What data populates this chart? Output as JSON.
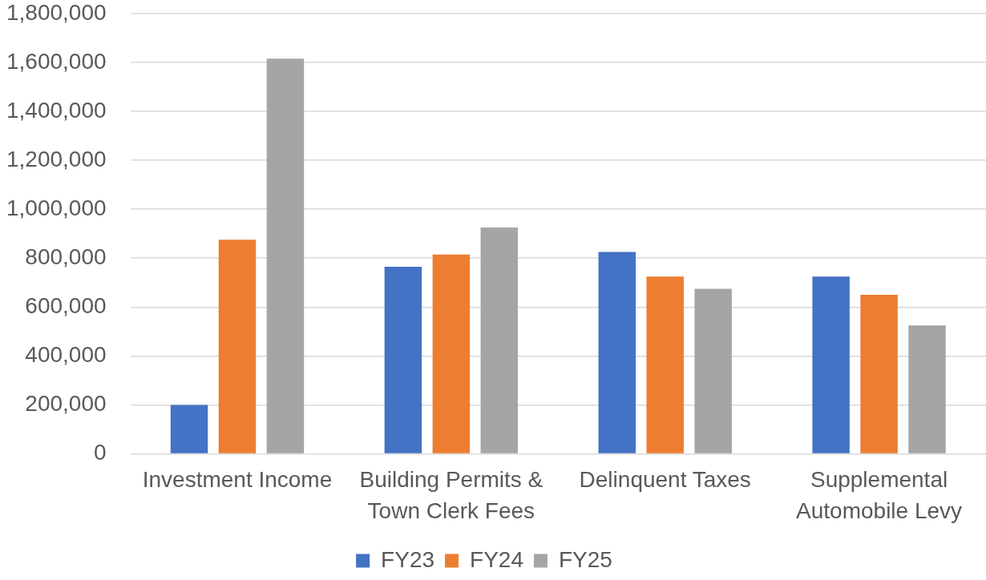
{
  "chart_data": {
    "type": "bar",
    "categories": [
      "Investment Income",
      "Building Permits & Town Clerk Fees",
      "Delinquent Taxes",
      "Supplemental Automobile Levy"
    ],
    "series": [
      {
        "name": "FY23",
        "color": "#4472c4",
        "values": [
          200000,
          765000,
          825000,
          725000
        ]
      },
      {
        "name": "FY24",
        "color": "#ed7d31",
        "values": [
          875000,
          815000,
          725000,
          650000
        ]
      },
      {
        "name": "FY25",
        "color": "#a5a5a5",
        "values": [
          1615000,
          925000,
          675000,
          525000
        ]
      }
    ],
    "ylim": [
      0,
      1800000
    ],
    "yticks": [
      {
        "value": 0,
        "label": "0"
      },
      {
        "value": 200000,
        "label": "200,000"
      },
      {
        "value": 400000,
        "label": "400,000"
      },
      {
        "value": 600000,
        "label": "600,000"
      },
      {
        "value": 800000,
        "label": "800,000"
      },
      {
        "value": 1000000,
        "label": "1,000,000"
      },
      {
        "value": 1200000,
        "label": "1,200,000"
      },
      {
        "value": 1400000,
        "label": "1,400,000"
      },
      {
        "value": 1600000,
        "label": "1,600,000"
      },
      {
        "value": 1800000,
        "label": "1,800,000"
      }
    ],
    "grid": "y",
    "legend": "bottom"
  }
}
